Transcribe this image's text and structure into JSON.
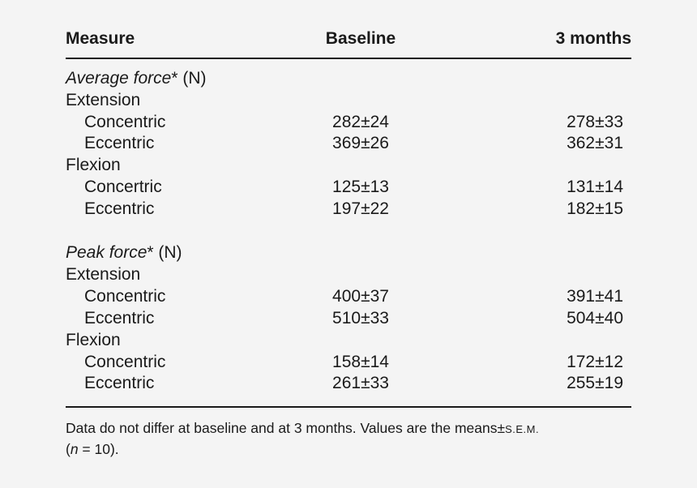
{
  "header": {
    "measure": "Measure",
    "baseline": "Baseline",
    "months": "3 months"
  },
  "sections": [
    {
      "title_italic": "Average force",
      "title_rest": "* (N)",
      "groups": [
        {
          "name": "Extension",
          "rows": [
            {
              "label": "Concentric",
              "baseline": "282±24",
              "months": "278±33"
            },
            {
              "label": "Eccentric",
              "baseline": "369±26",
              "months": "362±31"
            }
          ]
        },
        {
          "name": "Flexion",
          "rows": [
            {
              "label": "Concertric",
              "baseline": "125±13",
              "months": "131±14"
            },
            {
              "label": "Eccentric",
              "baseline": "197±22",
              "months": "182±15"
            }
          ]
        }
      ]
    },
    {
      "title_italic": "Peak force",
      "title_rest": "* (N)",
      "groups": [
        {
          "name": "Extension",
          "rows": [
            {
              "label": "Concentric",
              "baseline": "400±37",
              "months": "391±41"
            },
            {
              "label": "Eccentric",
              "baseline": "510±33",
              "months": "504±40"
            }
          ]
        },
        {
          "name": "Flexion",
          "rows": [
            {
              "label": "Concentric",
              "baseline": "158±14",
              "months": "172±12"
            },
            {
              "label": "Eccentric",
              "baseline": "261±33",
              "months": "255±19"
            }
          ]
        }
      ]
    }
  ],
  "footnote": {
    "line1_text": "Data do not differ at baseline and at 3 months. Values are the means",
    "line1_pm": "±",
    "line1_sem": "S.E.M.",
    "line2_open": "(",
    "line2_n": "n",
    "line2_rest": " = 10)."
  }
}
